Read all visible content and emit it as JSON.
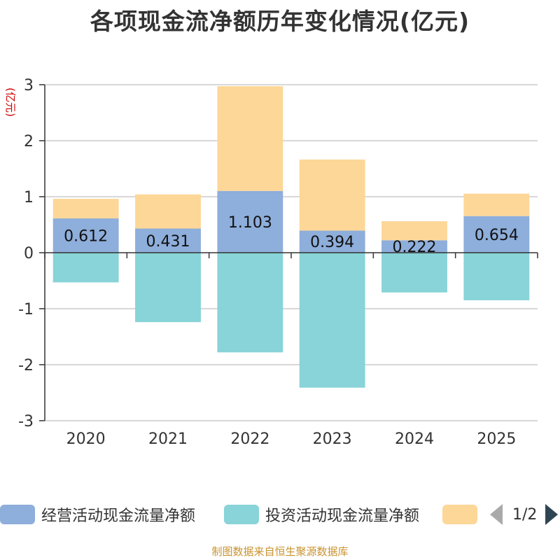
{
  "chart_data": {
    "type": "bar",
    "stacked": true,
    "title": "各项现金流净额历年变化情况(亿元)",
    "ylabel": "(亿元)",
    "xlabel": "",
    "ylim": [
      -3,
      3
    ],
    "yticks": [
      3,
      2,
      1,
      0,
      -1,
      -2,
      -3
    ],
    "categories": [
      "2020",
      "2021",
      "2022",
      "2023",
      "2024",
      "2025"
    ],
    "series": [
      {
        "name": "经营活动现金流量净额",
        "color": "#8eaedb",
        "values": [
          0.612,
          0.431,
          1.103,
          0.394,
          0.222,
          0.654
        ],
        "labels": [
          "0.612",
          "0.431",
          "1.103",
          "0.394",
          "0.222",
          "0.654"
        ]
      },
      {
        "name": "投资活动现金流量净额",
        "color": "#88d4d8",
        "values": [
          -0.53,
          -1.24,
          -1.78,
          -2.41,
          -0.71,
          -0.85
        ]
      },
      {
        "name": "",
        "color": "#fdd798",
        "values": [
          0.35,
          0.61,
          1.87,
          1.27,
          0.34,
          0.4
        ]
      }
    ]
  },
  "legend": {
    "items": [
      {
        "label": "经营活动现金流量净额",
        "color": "#8eaedb"
      },
      {
        "label": "投资活动现金流量净额",
        "color": "#88d4d8"
      },
      {
        "label": "",
        "color": "#fdd798"
      }
    ],
    "page_text": "1/2"
  },
  "footer": "制图数据来自恒生聚源数据库"
}
